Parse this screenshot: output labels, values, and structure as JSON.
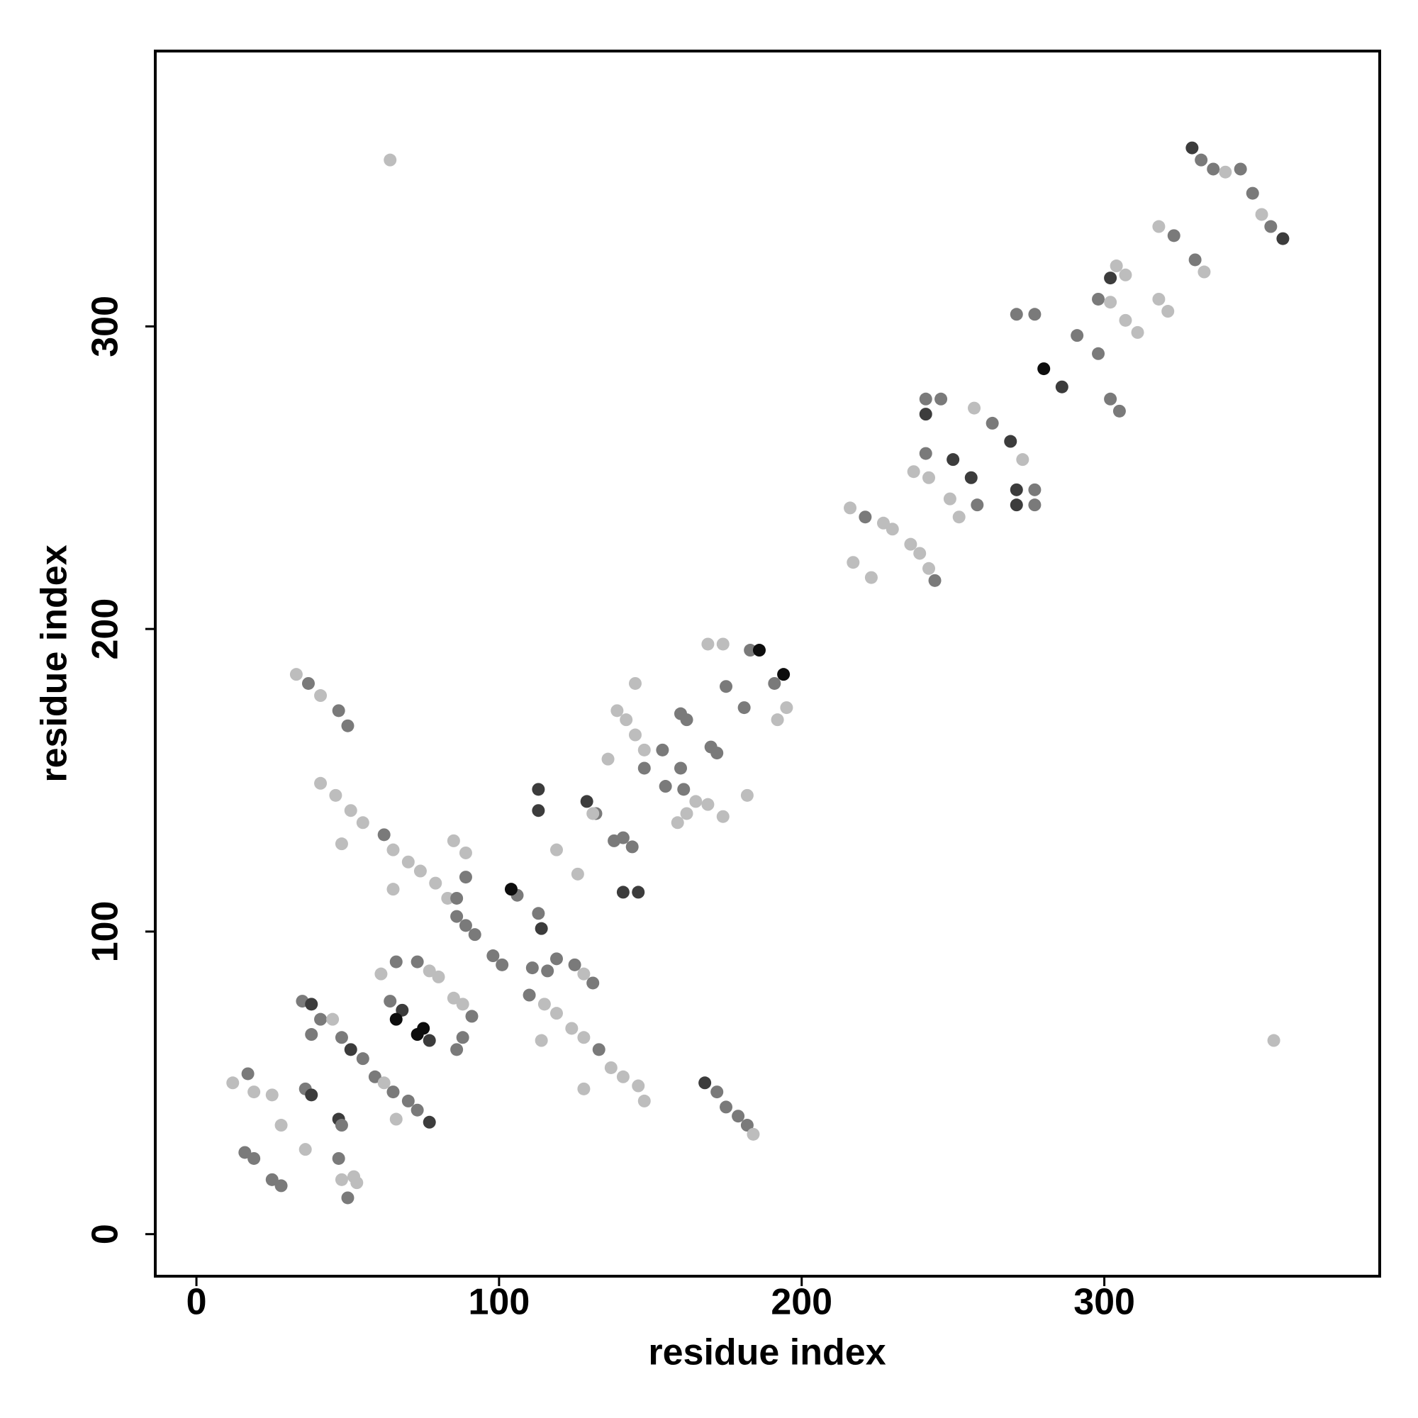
{
  "chart_data": {
    "type": "scatter",
    "x_label": "residue index",
    "y_label": "residue index",
    "xlim": [
      -13.6,
      391
    ],
    "ylim": [
      -13.9,
      391
    ],
    "xticks": [
      0,
      100,
      200,
      300
    ],
    "yticks": [
      0,
      100,
      200,
      300
    ],
    "x": [
      329,
      332,
      336,
      340,
      345,
      349,
      352,
      355,
      359,
      64,
      356,
      318,
      323,
      330,
      333,
      304,
      307,
      298,
      302,
      318,
      321,
      307,
      311,
      302,
      271,
      277,
      291,
      298,
      280,
      286,
      302,
      305,
      241,
      246,
      241,
      257,
      263,
      269,
      273,
      271,
      277,
      271,
      277,
      241,
      250,
      256,
      258,
      237,
      242,
      249,
      252,
      216,
      221,
      227,
      230,
      217,
      223,
      236,
      239,
      242,
      244,
      169,
      174,
      183,
      186,
      194,
      191,
      195,
      192,
      175,
      181,
      182,
      145,
      139,
      142,
      145,
      148,
      136,
      154,
      148,
      160,
      162,
      160,
      155,
      161,
      165,
      169,
      174,
      162,
      159,
      170,
      172,
      113,
      113,
      129,
      132,
      119,
      126,
      131,
      138,
      141,
      144,
      141,
      146,
      33,
      37,
      41,
      47,
      50,
      41,
      46,
      51,
      55,
      48,
      62,
      65,
      70,
      74,
      79,
      83,
      65,
      85,
      89,
      89,
      86,
      86,
      89,
      92,
      98,
      101,
      106,
      104,
      113,
      114,
      111,
      116,
      119,
      125,
      128,
      131,
      110,
      115,
      119,
      124,
      128,
      133,
      137,
      141,
      146,
      148,
      114,
      128,
      61,
      66,
      73,
      77,
      80,
      64,
      68,
      66,
      75,
      73,
      77,
      85,
      88,
      91,
      88,
      86,
      35,
      38,
      41,
      45,
      48,
      51,
      55,
      38,
      59,
      62,
      65,
      70,
      73,
      77,
      66,
      168,
      172,
      175,
      179,
      182,
      184,
      12,
      17,
      19,
      25,
      36,
      38,
      28,
      36,
      47,
      48,
      16,
      19,
      25,
      28,
      47,
      48,
      52,
      53,
      50
    ],
    "y": [
      359,
      355,
      352,
      351,
      352,
      344,
      337,
      333,
      329,
      355,
      64,
      333,
      330,
      322,
      318,
      320,
      317,
      309,
      308,
      309,
      305,
      302,
      298,
      316,
      304,
      304,
      297,
      291,
      286,
      280,
      276,
      272,
      276,
      276,
      271,
      273,
      268,
      262,
      256,
      246,
      246,
      241,
      241,
      258,
      256,
      250,
      241,
      252,
      250,
      243,
      237,
      240,
      237,
      235,
      233,
      222,
      217,
      228,
      225,
      220,
      216,
      195,
      195,
      193,
      193,
      185,
      182,
      174,
      170,
      181,
      174,
      145,
      182,
      173,
      170,
      165,
      160,
      157,
      160,
      154,
      172,
      170,
      154,
      148,
      147,
      143,
      142,
      138,
      139,
      136,
      161,
      159,
      147,
      140,
      143,
      139,
      127,
      119,
      139,
      130,
      131,
      128,
      113,
      113,
      185,
      182,
      178,
      173,
      168,
      149,
      145,
      140,
      136,
      129,
      132,
      127,
      123,
      120,
      116,
      111,
      114,
      130,
      126,
      118,
      111,
      105,
      102,
      99,
      92,
      89,
      112,
      114,
      106,
      101,
      88,
      87,
      91,
      89,
      86,
      83,
      79,
      76,
      73,
      68,
      65,
      61,
      55,
      52,
      49,
      44,
      64,
      48,
      86,
      90,
      90,
      87,
      85,
      77,
      74,
      71,
      68,
      66,
      64,
      78,
      76,
      72,
      65,
      61,
      77,
      76,
      71,
      71,
      65,
      61,
      58,
      66,
      52,
      50,
      47,
      44,
      41,
      37,
      38,
      50,
      47,
      42,
      39,
      36,
      33,
      50,
      53,
      47,
      46,
      48,
      46,
      36,
      28,
      38,
      36,
      27,
      25,
      18,
      16,
      25,
      18,
      19,
      17,
      12
    ],
    "colors": [
      "#3c3c3c",
      "#7a7a7a",
      "#7a7a7a",
      "#bdbdbd",
      "#7a7a7a",
      "#7a7a7a",
      "#bdbdbd",
      "#7a7a7a",
      "#3c3c3c",
      "#bdbdbd",
      "#bdbdbd",
      "#bdbdbd",
      "#7a7a7a",
      "#7a7a7a",
      "#bdbdbd",
      "#bdbdbd",
      "#bdbdbd",
      "#7a7a7a",
      "#bdbdbd",
      "#bdbdbd",
      "#bdbdbd",
      "#bdbdbd",
      "#bdbdbd",
      "#3c3c3c",
      "#7a7a7a",
      "#7a7a7a",
      "#7a7a7a",
      "#7a7a7a",
      "#0d0d0d",
      "#3c3c3c",
      "#7a7a7a",
      "#7a7a7a",
      "#7a7a7a",
      "#7a7a7a",
      "#3c3c3c",
      "#bdbdbd",
      "#7a7a7a",
      "#3c3c3c",
      "#bdbdbd",
      "#3c3c3c",
      "#7a7a7a",
      "#3c3c3c",
      "#7a7a7a",
      "#7a7a7a",
      "#3c3c3c",
      "#3c3c3c",
      "#7a7a7a",
      "#bdbdbd",
      "#bdbdbd",
      "#bdbdbd",
      "#bdbdbd",
      "#bdbdbd",
      "#7a7a7a",
      "#bdbdbd",
      "#bdbdbd",
      "#bdbdbd",
      "#bdbdbd",
      "#bdbdbd",
      "#bdbdbd",
      "#bdbdbd",
      "#7a7a7a",
      "#bdbdbd",
      "#bdbdbd",
      "#7a7a7a",
      "#0d0d0d",
      "#0d0d0d",
      "#7a7a7a",
      "#bdbdbd",
      "#bdbdbd",
      "#7a7a7a",
      "#7a7a7a",
      "#bdbdbd",
      "#bdbdbd",
      "#bdbdbd",
      "#bdbdbd",
      "#bdbdbd",
      "#bdbdbd",
      "#bdbdbd",
      "#7a7a7a",
      "#7a7a7a",
      "#7a7a7a",
      "#7a7a7a",
      "#7a7a7a",
      "#7a7a7a",
      "#7a7a7a",
      "#bdbdbd",
      "#bdbdbd",
      "#bdbdbd",
      "#bdbdbd",
      "#bdbdbd",
      "#7a7a7a",
      "#7a7a7a",
      "#3c3c3c",
      "#3c3c3c",
      "#3c3c3c",
      "#7a7a7a",
      "#bdbdbd",
      "#bdbdbd",
      "#bdbdbd",
      "#7a7a7a",
      "#7a7a7a",
      "#7a7a7a",
      "#3c3c3c",
      "#3c3c3c",
      "#bdbdbd",
      "#7a7a7a",
      "#bdbdbd",
      "#7a7a7a",
      "#7a7a7a",
      "#bdbdbd",
      "#bdbdbd",
      "#bdbdbd",
      "#bdbdbd",
      "#bdbdbd",
      "#7a7a7a",
      "#bdbdbd",
      "#bdbdbd",
      "#bdbdbd",
      "#bdbdbd",
      "#bdbdbd",
      "#bdbdbd",
      "#bdbdbd",
      "#bdbdbd",
      "#7a7a7a",
      "#7a7a7a",
      "#7a7a7a",
      "#7a7a7a",
      "#7a7a7a",
      "#7a7a7a",
      "#7a7a7a",
      "#7a7a7a",
      "#0d0d0d",
      "#7a7a7a",
      "#3c3c3c",
      "#7a7a7a",
      "#7a7a7a",
      "#7a7a7a",
      "#7a7a7a",
      "#bdbdbd",
      "#7a7a7a",
      "#7a7a7a",
      "#bdbdbd",
      "#bdbdbd",
      "#bdbdbd",
      "#bdbdbd",
      "#7a7a7a",
      "#bdbdbd",
      "#bdbdbd",
      "#bdbdbd",
      "#bdbdbd",
      "#bdbdbd",
      "#bdbdbd",
      "#bdbdbd",
      "#7a7a7a",
      "#7a7a7a",
      "#bdbdbd",
      "#bdbdbd",
      "#7a7a7a",
      "#3c3c3c",
      "#0d0d0d",
      "#0d0d0d",
      "#0d0d0d",
      "#3c3c3c",
      "#bdbdbd",
      "#bdbdbd",
      "#7a7a7a",
      "#7a7a7a",
      "#7a7a7a",
      "#7a7a7a",
      "#3c3c3c",
      "#7a7a7a",
      "#bdbdbd",
      "#7a7a7a",
      "#3c3c3c",
      "#7a7a7a",
      "#7a7a7a",
      "#7a7a7a",
      "#bdbdbd",
      "#7a7a7a",
      "#7a7a7a",
      "#7a7a7a",
      "#3c3c3c",
      "#bdbdbd",
      "#3c3c3c",
      "#7a7a7a",
      "#7a7a7a",
      "#7a7a7a",
      "#7a7a7a",
      "#bdbdbd",
      "#bdbdbd",
      "#7a7a7a",
      "#bdbdbd",
      "#bdbdbd",
      "#7a7a7a",
      "#3c3c3c",
      "#bdbdbd",
      "#bdbdbd",
      "#3c3c3c",
      "#7a7a7a",
      "#7a7a7a",
      "#7a7a7a",
      "#7a7a7a",
      "#7a7a7a",
      "#7a7a7a",
      "#bdbdbd",
      "#bdbdbd",
      "#bdbdbd",
      "#7a7a7a"
    ]
  }
}
